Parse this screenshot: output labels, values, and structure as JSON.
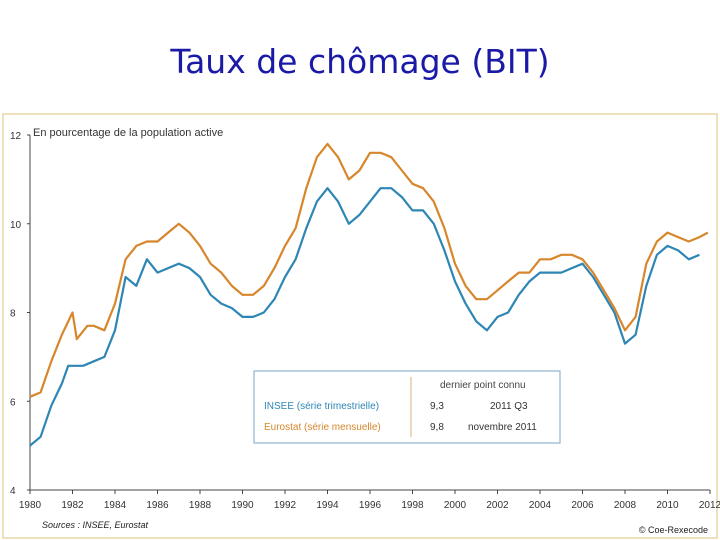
{
  "slide": {
    "title": "Taux de chômage (BIT)"
  },
  "chart_data": {
    "type": "line",
    "subtitle": "En pourcentage de la population active",
    "source": "Sources : INSEE, Eurostat",
    "credit": "© Coe-Rexecode",
    "xlim": [
      1980,
      2012
    ],
    "ylim": [
      4,
      12
    ],
    "xticks": [
      1980,
      1982,
      1984,
      1986,
      1988,
      1990,
      1992,
      1994,
      1996,
      1998,
      2000,
      2002,
      2004,
      2006,
      2008,
      2010,
      2012
    ],
    "yticks": [
      4,
      6,
      8,
      10,
      12
    ],
    "grid": false,
    "legend": {
      "header": "dernier point connu",
      "entries": [
        {
          "label": "INSEE (série trimestrielle)",
          "value": "9,3",
          "date": "2011 Q3"
        },
        {
          "label": "Eurostat (série mensuelle)",
          "value": "9,8",
          "date": "novembre 2011"
        }
      ]
    },
    "series": [
      {
        "name": "INSEE (série trimestrielle)",
        "color": "#2e86b5",
        "points": [
          [
            1980.0,
            5.0
          ],
          [
            1980.5,
            5.2
          ],
          [
            1981.0,
            5.9
          ],
          [
            1981.5,
            6.4
          ],
          [
            1981.8,
            6.8
          ],
          [
            1982.5,
            6.8
          ],
          [
            1983.0,
            6.9
          ],
          [
            1983.5,
            7.0
          ],
          [
            1984.0,
            7.6
          ],
          [
            1984.5,
            8.8
          ],
          [
            1985.0,
            8.6
          ],
          [
            1985.5,
            9.2
          ],
          [
            1986.0,
            8.9
          ],
          [
            1986.5,
            9.0
          ],
          [
            1987.0,
            9.1
          ],
          [
            1987.5,
            9.0
          ],
          [
            1988.0,
            8.8
          ],
          [
            1988.5,
            8.4
          ],
          [
            1989.0,
            8.2
          ],
          [
            1989.5,
            8.1
          ],
          [
            1990.0,
            7.9
          ],
          [
            1990.5,
            7.9
          ],
          [
            1991.0,
            8.0
          ],
          [
            1991.5,
            8.3
          ],
          [
            1992.0,
            8.8
          ],
          [
            1992.5,
            9.2
          ],
          [
            1993.0,
            9.9
          ],
          [
            1993.5,
            10.5
          ],
          [
            1994.0,
            10.8
          ],
          [
            1994.5,
            10.5
          ],
          [
            1995.0,
            10.0
          ],
          [
            1995.5,
            10.2
          ],
          [
            1996.0,
            10.5
          ],
          [
            1996.5,
            10.8
          ],
          [
            1997.0,
            10.8
          ],
          [
            1997.5,
            10.6
          ],
          [
            1998.0,
            10.3
          ],
          [
            1998.5,
            10.3
          ],
          [
            1999.0,
            10.0
          ],
          [
            1999.5,
            9.4
          ],
          [
            2000.0,
            8.7
          ],
          [
            2000.5,
            8.2
          ],
          [
            2001.0,
            7.8
          ],
          [
            2001.5,
            7.6
          ],
          [
            2002.0,
            7.9
          ],
          [
            2002.5,
            8.0
          ],
          [
            2003.0,
            8.4
          ],
          [
            2003.5,
            8.7
          ],
          [
            2004.0,
            8.9
          ],
          [
            2004.5,
            8.9
          ],
          [
            2005.0,
            8.9
          ],
          [
            2005.5,
            9.0
          ],
          [
            2006.0,
            9.1
          ],
          [
            2006.5,
            8.8
          ],
          [
            2007.0,
            8.4
          ],
          [
            2007.5,
            8.0
          ],
          [
            2008.0,
            7.3
          ],
          [
            2008.5,
            7.5
          ],
          [
            2009.0,
            8.6
          ],
          [
            2009.5,
            9.3
          ],
          [
            2010.0,
            9.5
          ],
          [
            2010.5,
            9.4
          ],
          [
            2011.0,
            9.2
          ],
          [
            2011.5,
            9.3
          ]
        ]
      },
      {
        "name": "Eurostat (série mensuelle)",
        "color": "#d8862b",
        "points": [
          [
            1980.0,
            6.1
          ],
          [
            1980.5,
            6.2
          ],
          [
            1981.0,
            6.9
          ],
          [
            1981.5,
            7.5
          ],
          [
            1982.0,
            8.0
          ],
          [
            1982.2,
            7.4
          ],
          [
            1982.7,
            7.7
          ],
          [
            1983.0,
            7.7
          ],
          [
            1983.5,
            7.6
          ],
          [
            1984.0,
            8.2
          ],
          [
            1984.5,
            9.2
          ],
          [
            1985.0,
            9.5
          ],
          [
            1985.5,
            9.6
          ],
          [
            1986.0,
            9.6
          ],
          [
            1986.5,
            9.8
          ],
          [
            1987.0,
            10.0
          ],
          [
            1987.5,
            9.8
          ],
          [
            1988.0,
            9.5
          ],
          [
            1988.5,
            9.1
          ],
          [
            1989.0,
            8.9
          ],
          [
            1989.5,
            8.6
          ],
          [
            1990.0,
            8.4
          ],
          [
            1990.5,
            8.4
          ],
          [
            1991.0,
            8.6
          ],
          [
            1991.5,
            9.0
          ],
          [
            1992.0,
            9.5
          ],
          [
            1992.5,
            9.9
          ],
          [
            1993.0,
            10.8
          ],
          [
            1993.5,
            11.5
          ],
          [
            1994.0,
            11.8
          ],
          [
            1994.5,
            11.5
          ],
          [
            1995.0,
            11.0
          ],
          [
            1995.5,
            11.2
          ],
          [
            1996.0,
            11.6
          ],
          [
            1996.5,
            11.6
          ],
          [
            1997.0,
            11.5
          ],
          [
            1997.5,
            11.2
          ],
          [
            1998.0,
            10.9
          ],
          [
            1998.5,
            10.8
          ],
          [
            1999.0,
            10.5
          ],
          [
            1999.5,
            9.9
          ],
          [
            2000.0,
            9.1
          ],
          [
            2000.5,
            8.6
          ],
          [
            2001.0,
            8.3
          ],
          [
            2001.5,
            8.3
          ],
          [
            2002.0,
            8.5
          ],
          [
            2002.5,
            8.7
          ],
          [
            2003.0,
            8.9
          ],
          [
            2003.5,
            8.9
          ],
          [
            2004.0,
            9.2
          ],
          [
            2004.5,
            9.2
          ],
          [
            2005.0,
            9.3
          ],
          [
            2005.5,
            9.3
          ],
          [
            2006.0,
            9.2
          ],
          [
            2006.5,
            8.9
          ],
          [
            2007.0,
            8.5
          ],
          [
            2007.5,
            8.1
          ],
          [
            2008.0,
            7.6
          ],
          [
            2008.5,
            7.9
          ],
          [
            2009.0,
            9.1
          ],
          [
            2009.5,
            9.6
          ],
          [
            2010.0,
            9.8
          ],
          [
            2010.5,
            9.7
          ],
          [
            2011.0,
            9.6
          ],
          [
            2011.5,
            9.7
          ],
          [
            2011.9,
            9.8
          ]
        ]
      }
    ]
  }
}
